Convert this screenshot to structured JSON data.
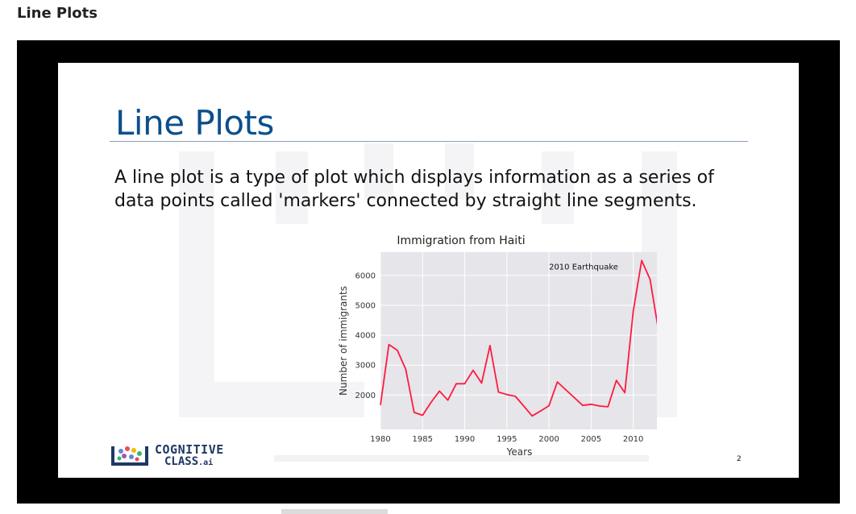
{
  "page": {
    "heading": "Line Plots"
  },
  "slide": {
    "title": "Line Plots",
    "body": "A line plot is a type of plot which displays information as a series of data points called 'markers' connected by straight line segments.",
    "slide_number": "2",
    "logo": {
      "line1": "COGNITIVE",
      "line2": "CLASS",
      "suffix": ".ai"
    }
  },
  "colors": {
    "title": "#0b4f8c",
    "line": "#ff1a40",
    "plot_bg": "#e5e5ea"
  },
  "chart_data": {
    "type": "line",
    "title": "Immigration from Haiti",
    "xlabel": "Years",
    "ylabel": "Number of immigrants",
    "xlim": [
      1980,
      2013
    ],
    "ylim": [
      850,
      6780
    ],
    "xticks": [
      1980,
      1985,
      1990,
      1995,
      2000,
      2005,
      2010
    ],
    "yticks": [
      2000,
      3000,
      4000,
      5000,
      6000
    ],
    "grid": true,
    "annotation": {
      "text": "2010 Earthquake",
      "x": 2000,
      "y": 6200
    },
    "series": [
      {
        "x": [
          1980,
          1981,
          1982,
          1983,
          1984,
          1985,
          1986,
          1987,
          1988,
          1989,
          1990,
          1991,
          1992,
          1993,
          1994,
          1995,
          1996,
          1997,
          1998,
          1999,
          2000,
          2001,
          2002,
          2003,
          2004,
          2005,
          2006,
          2007,
          2008,
          2009,
          2010,
          2011,
          2012,
          2013
        ],
        "values": [
          1666,
          3692,
          3498,
          2860,
          1418,
          1321,
          1753,
          2132,
          1829,
          2377,
          2379,
          2829,
          2399,
          3655,
          2100,
          2018,
          1957,
          1634,
          1299,
          1465,
          1643,
          2437,
          2174,
          1915,
          1653,
          1691,
          1633,
          1608,
          2491,
          2080,
          4800,
          6503,
          5868,
          4152
        ]
      }
    ]
  }
}
